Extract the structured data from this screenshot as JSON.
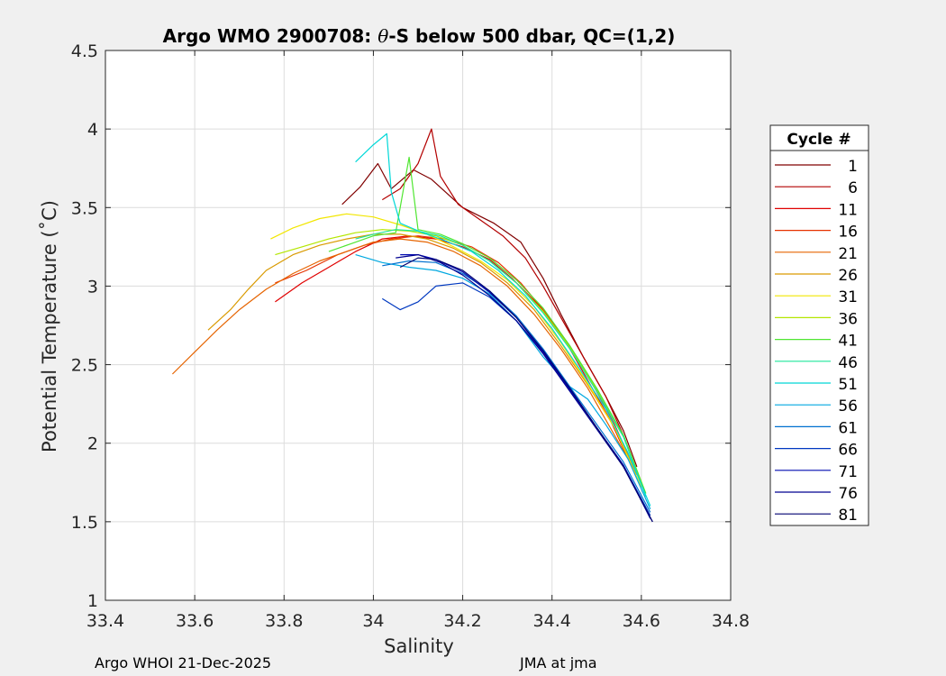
{
  "footer": {
    "left": "Argo WHOI 21-Dec-2025",
    "right": "JMA at jma"
  },
  "chart_data": {
    "type": "line",
    "title": "Argo WMO 2900708: θ-S below 500 dbar,  QC=(1,2)",
    "title_parts": {
      "prefix": "Argo WMO 2900708: ",
      "theta": "θ",
      "suffix": "-S below 500 dbar,  QC=(1,2)"
    },
    "xlabel": "Salinity",
    "ylabel": "Potential Temperature (˚C)",
    "xlim": [
      33.4,
      34.8
    ],
    "ylim": [
      1,
      4.5
    ],
    "xticks": [
      33.4,
      33.6,
      33.8,
      34,
      34.2,
      34.4,
      34.6,
      34.8
    ],
    "xtick_labels": [
      "33.4",
      "33.6",
      "33.8",
      "34",
      "34.2",
      "34.4",
      "34.6",
      "34.8"
    ],
    "yticks": [
      1,
      1.5,
      2,
      2.5,
      3,
      3.5,
      4,
      4.5
    ],
    "ytick_labels": [
      "1",
      "1.5",
      "2",
      "2.5",
      "3",
      "3.5",
      "4",
      "4.5"
    ],
    "grid": true,
    "legend": {
      "title": "Cycle #",
      "placement": "outside-right",
      "entries": [
        {
          "label": "1",
          "color": "#800000"
        },
        {
          "label": "6",
          "color": "#b30000"
        },
        {
          "label": "11",
          "color": "#e00000"
        },
        {
          "label": "16",
          "color": "#e63200"
        },
        {
          "label": "21",
          "color": "#e66400"
        },
        {
          "label": "26",
          "color": "#d99a00"
        },
        {
          "label": "31",
          "color": "#f2e600"
        },
        {
          "label": "36",
          "color": "#b4e600"
        },
        {
          "label": "41",
          "color": "#50e632"
        },
        {
          "label": "46",
          "color": "#1ee69a"
        },
        {
          "label": "51",
          "color": "#00d8d8"
        },
        {
          "label": "56",
          "color": "#00a8e0"
        },
        {
          "label": "61",
          "color": "#0070d0"
        },
        {
          "label": "66",
          "color": "#0038c0"
        },
        {
          "label": "71",
          "color": "#000ab0"
        },
        {
          "label": "76",
          "color": "#000090"
        },
        {
          "label": "81",
          "color": "#000070"
        }
      ]
    },
    "series": [
      {
        "name": "1",
        "color": "#800000",
        "points": [
          [
            33.93,
            3.52
          ],
          [
            33.97,
            3.63
          ],
          [
            34.01,
            3.78
          ],
          [
            34.04,
            3.62
          ],
          [
            34.09,
            3.74
          ],
          [
            34.13,
            3.68
          ],
          [
            34.2,
            3.5
          ],
          [
            34.27,
            3.4
          ],
          [
            34.33,
            3.28
          ],
          [
            34.38,
            3.05
          ],
          [
            34.42,
            2.82
          ],
          [
            34.47,
            2.55
          ],
          [
            34.52,
            2.3
          ],
          [
            34.56,
            2.08
          ],
          [
            34.59,
            1.85
          ]
        ]
      },
      {
        "name": "6",
        "color": "#b30000",
        "points": [
          [
            34.02,
            3.55
          ],
          [
            34.06,
            3.62
          ],
          [
            34.1,
            3.78
          ],
          [
            34.13,
            4.0
          ],
          [
            34.15,
            3.7
          ],
          [
            34.19,
            3.52
          ],
          [
            34.24,
            3.42
          ],
          [
            34.29,
            3.32
          ],
          [
            34.34,
            3.18
          ],
          [
            34.38,
            3.0
          ],
          [
            34.42,
            2.8
          ],
          [
            34.47,
            2.55
          ],
          [
            34.52,
            2.3
          ],
          [
            34.56,
            2.05
          ],
          [
            34.59,
            1.82
          ]
        ]
      },
      {
        "name": "11",
        "color": "#e00000",
        "points": [
          [
            33.78,
            2.9
          ],
          [
            33.84,
            3.02
          ],
          [
            33.9,
            3.12
          ],
          [
            33.96,
            3.22
          ],
          [
            34.02,
            3.3
          ],
          [
            34.08,
            3.32
          ],
          [
            34.14,
            3.3
          ],
          [
            34.2,
            3.25
          ],
          [
            34.26,
            3.17
          ],
          [
            34.31,
            3.05
          ],
          [
            34.37,
            2.88
          ],
          [
            34.43,
            2.65
          ],
          [
            34.48,
            2.4
          ],
          [
            34.53,
            2.15
          ],
          [
            34.59,
            1.78
          ]
        ]
      },
      {
        "name": "16",
        "color": "#e63200",
        "points": [
          [
            33.78,
            3.02
          ],
          [
            33.85,
            3.1
          ],
          [
            33.92,
            3.2
          ],
          [
            33.98,
            3.26
          ],
          [
            34.04,
            3.3
          ],
          [
            34.1,
            3.32
          ],
          [
            34.16,
            3.3
          ],
          [
            34.22,
            3.25
          ],
          [
            34.28,
            3.15
          ],
          [
            34.33,
            3.02
          ],
          [
            34.38,
            2.85
          ],
          [
            34.44,
            2.62
          ],
          [
            34.49,
            2.38
          ],
          [
            34.54,
            2.12
          ],
          [
            34.59,
            1.8
          ]
        ]
      },
      {
        "name": "21",
        "color": "#e66400",
        "points": [
          [
            33.55,
            2.44
          ],
          [
            33.6,
            2.58
          ],
          [
            33.65,
            2.72
          ],
          [
            33.7,
            2.85
          ],
          [
            33.76,
            2.98
          ],
          [
            33.82,
            3.08
          ],
          [
            33.88,
            3.16
          ],
          [
            33.94,
            3.22
          ],
          [
            34.0,
            3.28
          ],
          [
            34.06,
            3.3
          ],
          [
            34.12,
            3.28
          ],
          [
            34.18,
            3.22
          ],
          [
            34.24,
            3.13
          ],
          [
            34.3,
            3.0
          ],
          [
            34.36,
            2.82
          ],
          [
            34.42,
            2.6
          ],
          [
            34.48,
            2.35
          ],
          [
            34.53,
            2.1
          ],
          [
            34.59,
            1.8
          ]
        ]
      },
      {
        "name": "26",
        "color": "#d99a00",
        "points": [
          [
            33.63,
            2.72
          ],
          [
            33.68,
            2.85
          ],
          [
            33.72,
            2.98
          ],
          [
            33.76,
            3.1
          ],
          [
            33.82,
            3.2
          ],
          [
            33.88,
            3.26
          ],
          [
            33.94,
            3.3
          ],
          [
            34.0,
            3.33
          ],
          [
            34.06,
            3.33
          ],
          [
            34.12,
            3.3
          ],
          [
            34.18,
            3.24
          ],
          [
            34.24,
            3.15
          ],
          [
            34.3,
            3.02
          ],
          [
            34.36,
            2.85
          ],
          [
            34.42,
            2.62
          ],
          [
            34.48,
            2.37
          ],
          [
            34.54,
            2.1
          ],
          [
            34.6,
            1.75
          ]
        ]
      },
      {
        "name": "31",
        "color": "#f2e600",
        "points": [
          [
            33.77,
            3.3
          ],
          [
            33.82,
            3.37
          ],
          [
            33.88,
            3.43
          ],
          [
            33.94,
            3.46
          ],
          [
            34.0,
            3.44
          ],
          [
            34.06,
            3.39
          ],
          [
            34.12,
            3.33
          ],
          [
            34.18,
            3.25
          ],
          [
            34.24,
            3.16
          ],
          [
            34.3,
            3.04
          ],
          [
            34.36,
            2.87
          ],
          [
            34.42,
            2.64
          ],
          [
            34.48,
            2.38
          ],
          [
            34.54,
            2.1
          ],
          [
            34.6,
            1.72
          ]
        ]
      },
      {
        "name": "36",
        "color": "#b4e600",
        "points": [
          [
            33.78,
            3.2
          ],
          [
            33.84,
            3.25
          ],
          [
            33.9,
            3.3
          ],
          [
            33.96,
            3.34
          ],
          [
            34.02,
            3.36
          ],
          [
            34.08,
            3.35
          ],
          [
            34.14,
            3.32
          ],
          [
            34.2,
            3.26
          ],
          [
            34.26,
            3.16
          ],
          [
            34.32,
            3.02
          ],
          [
            34.38,
            2.84
          ],
          [
            34.44,
            2.61
          ],
          [
            34.5,
            2.34
          ],
          [
            34.56,
            2.05
          ],
          [
            34.61,
            1.68
          ]
        ]
      },
      {
        "name": "41",
        "color": "#50e632",
        "points": [
          [
            33.9,
            3.22
          ],
          [
            33.95,
            3.27
          ],
          [
            34.0,
            3.32
          ],
          [
            34.05,
            3.34
          ],
          [
            34.08,
            3.82
          ],
          [
            34.1,
            3.36
          ],
          [
            34.15,
            3.33
          ],
          [
            34.2,
            3.27
          ],
          [
            34.26,
            3.18
          ],
          [
            34.32,
            3.04
          ],
          [
            34.38,
            2.86
          ],
          [
            34.44,
            2.62
          ],
          [
            34.5,
            2.35
          ],
          [
            34.56,
            2.05
          ],
          [
            34.61,
            1.68
          ]
        ]
      },
      {
        "name": "46",
        "color": "#1ee69a",
        "points": [
          [
            33.96,
            3.3
          ],
          [
            34.0,
            3.33
          ],
          [
            34.05,
            3.36
          ],
          [
            34.1,
            3.35
          ],
          [
            34.15,
            3.32
          ],
          [
            34.2,
            3.26
          ],
          [
            34.26,
            3.16
          ],
          [
            34.32,
            3.02
          ],
          [
            34.38,
            2.83
          ],
          [
            34.44,
            2.6
          ],
          [
            34.5,
            2.33
          ],
          [
            34.56,
            2.04
          ],
          [
            34.61,
            1.66
          ]
        ]
      },
      {
        "name": "51",
        "color": "#00d8d8",
        "points": [
          [
            33.96,
            3.79
          ],
          [
            34.0,
            3.9
          ],
          [
            34.03,
            3.97
          ],
          [
            34.04,
            3.6
          ],
          [
            34.06,
            3.4
          ],
          [
            34.11,
            3.34
          ],
          [
            34.16,
            3.29
          ],
          [
            34.22,
            3.22
          ],
          [
            34.28,
            3.1
          ],
          [
            34.34,
            2.94
          ],
          [
            34.4,
            2.73
          ],
          [
            34.46,
            2.48
          ],
          [
            34.52,
            2.22
          ],
          [
            34.57,
            1.94
          ],
          [
            34.62,
            1.6
          ]
        ]
      },
      {
        "name": "56",
        "color": "#00a8e0",
        "points": [
          [
            33.96,
            3.2
          ],
          [
            34.02,
            3.15
          ],
          [
            34.08,
            3.12
          ],
          [
            34.14,
            3.1
          ],
          [
            34.2,
            3.05
          ],
          [
            34.26,
            2.95
          ],
          [
            34.32,
            2.78
          ],
          [
            34.38,
            2.55
          ],
          [
            34.44,
            2.36
          ],
          [
            34.48,
            2.28
          ],
          [
            34.52,
            2.12
          ],
          [
            34.57,
            1.9
          ],
          [
            34.62,
            1.58
          ]
        ]
      },
      {
        "name": "61",
        "color": "#0070d0",
        "points": [
          [
            34.02,
            3.13
          ],
          [
            34.08,
            3.16
          ],
          [
            34.14,
            3.15
          ],
          [
            34.2,
            3.08
          ],
          [
            34.26,
            2.97
          ],
          [
            34.32,
            2.81
          ],
          [
            34.38,
            2.6
          ],
          [
            34.44,
            2.36
          ],
          [
            34.5,
            2.12
          ],
          [
            34.56,
            1.88
          ],
          [
            34.62,
            1.56
          ]
        ]
      },
      {
        "name": "66",
        "color": "#0038c0",
        "points": [
          [
            34.02,
            2.92
          ],
          [
            34.06,
            2.85
          ],
          [
            34.1,
            2.9
          ],
          [
            34.14,
            3.0
          ],
          [
            34.2,
            3.02
          ],
          [
            34.26,
            2.93
          ],
          [
            34.32,
            2.78
          ],
          [
            34.38,
            2.58
          ],
          [
            34.44,
            2.35
          ],
          [
            34.5,
            2.1
          ],
          [
            34.56,
            1.86
          ],
          [
            34.62,
            1.54
          ]
        ]
      },
      {
        "name": "71",
        "color": "#000ab0",
        "points": [
          [
            34.06,
            3.2
          ],
          [
            34.1,
            3.2
          ],
          [
            34.14,
            3.17
          ],
          [
            34.2,
            3.09
          ],
          [
            34.26,
            2.96
          ],
          [
            34.32,
            2.8
          ],
          [
            34.38,
            2.58
          ],
          [
            34.44,
            2.34
          ],
          [
            34.5,
            2.1
          ],
          [
            34.56,
            1.86
          ],
          [
            34.62,
            1.52
          ]
        ]
      },
      {
        "name": "76",
        "color": "#000090",
        "points": [
          [
            34.05,
            3.18
          ],
          [
            34.1,
            3.2
          ],
          [
            34.15,
            3.15
          ],
          [
            34.2,
            3.07
          ],
          [
            34.26,
            2.94
          ],
          [
            34.32,
            2.78
          ],
          [
            34.38,
            2.57
          ],
          [
            34.44,
            2.33
          ],
          [
            34.5,
            2.09
          ],
          [
            34.56,
            1.85
          ],
          [
            34.625,
            1.5
          ]
        ]
      },
      {
        "name": "81",
        "color": "#000070",
        "points": [
          [
            34.06,
            3.12
          ],
          [
            34.1,
            3.18
          ],
          [
            34.14,
            3.17
          ],
          [
            34.2,
            3.1
          ],
          [
            34.26,
            2.97
          ],
          [
            34.32,
            2.8
          ],
          [
            34.38,
            2.59
          ],
          [
            34.44,
            2.35
          ],
          [
            34.5,
            2.1
          ],
          [
            34.56,
            1.85
          ],
          [
            34.625,
            1.5
          ]
        ]
      }
    ]
  }
}
